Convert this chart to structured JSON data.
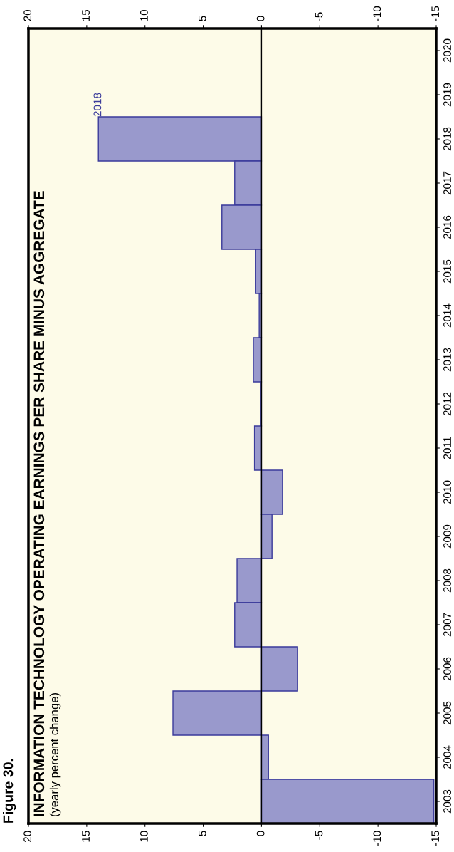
{
  "chart_data": {
    "type": "bar",
    "orientation": "horizontal",
    "title": "INFORMATION TECHNOLOGY OPERATING EARNINGS PER SHARE MINUS AGGREGATE",
    "subtitle": "(yearly percent change)",
    "annotations": [
      "Figure 30.",
      {
        "text": "2018",
        "x": 14.0,
        "y": "2018"
      }
    ],
    "categories": [
      "2020",
      "2019",
      "2018",
      "2017",
      "2016",
      "2015",
      "2014",
      "2013",
      "2012",
      "2011",
      "2010",
      "2009",
      "2008",
      "2007",
      "2006",
      "2005",
      "2004",
      "2003"
    ],
    "values": [
      null,
      null,
      14.0,
      2.3,
      3.4,
      0.5,
      0.2,
      0.7,
      0.1,
      0.6,
      -1.8,
      -0.9,
      2.1,
      2.3,
      -3.1,
      7.6,
      -0.6,
      -14.8
    ],
    "color": "#9999cc",
    "xlim": [
      20,
      -15
    ],
    "xticks": [
      20,
      15,
      10,
      5,
      0,
      -5,
      -10,
      -15
    ],
    "x2lim": [
      20,
      -15
    ],
    "x2ticks": [
      20,
      15,
      10,
      5,
      0,
      -5,
      -10,
      -15
    ],
    "ref_lines": [
      {
        "axis": "x",
        "value": 0,
        "color": "#000000"
      }
    ],
    "grid": false,
    "legend": false
  }
}
